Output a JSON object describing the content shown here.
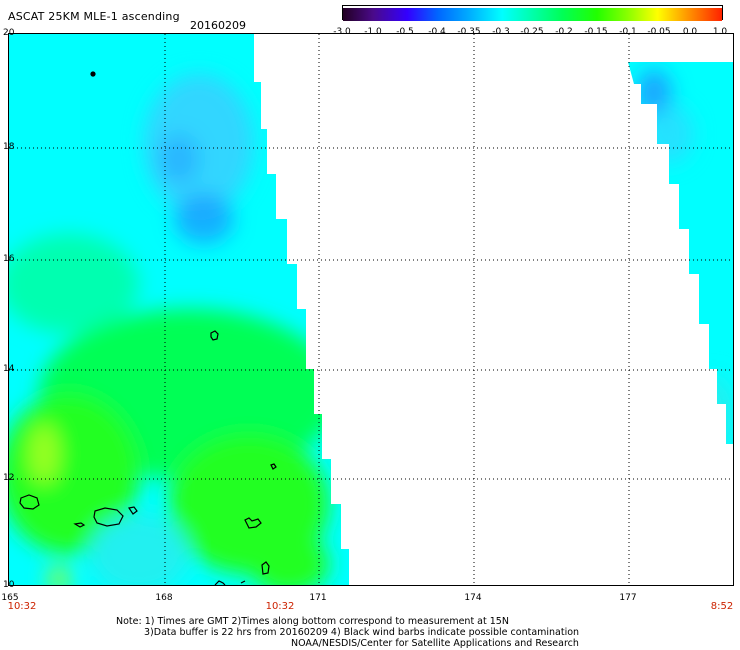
{
  "header": {
    "title": "ASCAT 25KM MLE-1 ascending",
    "date": "20160209"
  },
  "colorbar": {
    "tick_labels": [
      "-3.0",
      "-1.0",
      "-0.5",
      "-0.4",
      "-0.35",
      "-0.3",
      "-0.25",
      "-0.2",
      "-0.15",
      "-0.1",
      "-0.05",
      "0.0",
      "1.0"
    ],
    "colors": [
      "#220022",
      "#4a0a8a",
      "#3300ff",
      "#0066ff",
      "#00aaff",
      "#00ffff",
      "#00ffaa",
      "#00ff55",
      "#22ff00",
      "#88ff00",
      "#ffff00",
      "#ff8800",
      "#ff2200"
    ]
  },
  "map": {
    "lat_labels": [
      "20",
      "18",
      "16",
      "14",
      "12",
      "10"
    ],
    "lon_labels": [
      "165",
      "168",
      "171",
      "174",
      "177"
    ],
    "time_labels": [
      "10:32",
      "10:32",
      "8:52"
    ],
    "swath_colors": {
      "cyan": "#00ffff",
      "light_cyan": "#22f0f0",
      "sky": "#33d6ff",
      "blue": "#1e90ff",
      "aqua_green": "#00ffb0",
      "green": "#00ff55",
      "bright_green": "#22ff22",
      "yellow_green": "#99ff22"
    }
  },
  "notes": {
    "line1": "Note: 1) Times are GMT 2)Times along bottom correspond to measurement at 15N",
    "line2": "3)Data buffer is 22 hrs from 20160209 4) Black wind barbs indicate possible contamination",
    "line3": "NOAA/NESDIS/Center for Satellite Applications and Research"
  }
}
